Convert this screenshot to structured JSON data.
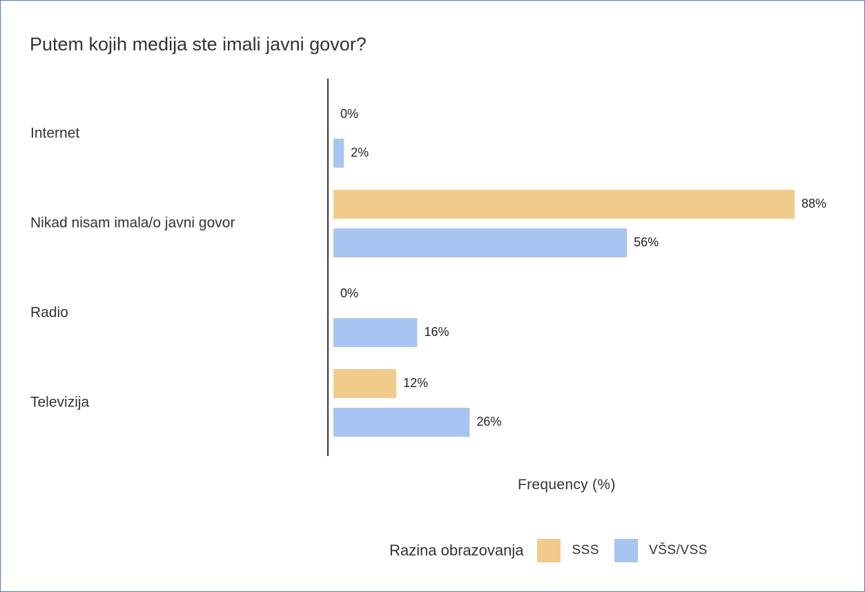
{
  "chart_data": {
    "type": "bar",
    "orientation": "horizontal",
    "title": "Putem kojih medija ste imali javni govor?",
    "xlabel": "Frequency (%)",
    "ylabel": "",
    "categories": [
      "Internet",
      "Nikad nisam imala/o javni govor",
      "Radio",
      "Televizija"
    ],
    "series": [
      {
        "name": "SSS",
        "color": "#f0cb8c",
        "values": [
          0,
          88,
          0,
          12
        ],
        "labels": [
          "0%",
          "88%",
          "0%",
          "12%"
        ]
      },
      {
        "name": "VŠS/VSS",
        "color": "#a8c4f0",
        "values": [
          2,
          56,
          16,
          26
        ],
        "labels": [
          "2%",
          "56%",
          "16%",
          "26%"
        ]
      }
    ],
    "xlim": [
      0,
      88
    ],
    "legend": {
      "title": "Razina obrazovanja",
      "position": "bottom"
    },
    "grid": false
  }
}
